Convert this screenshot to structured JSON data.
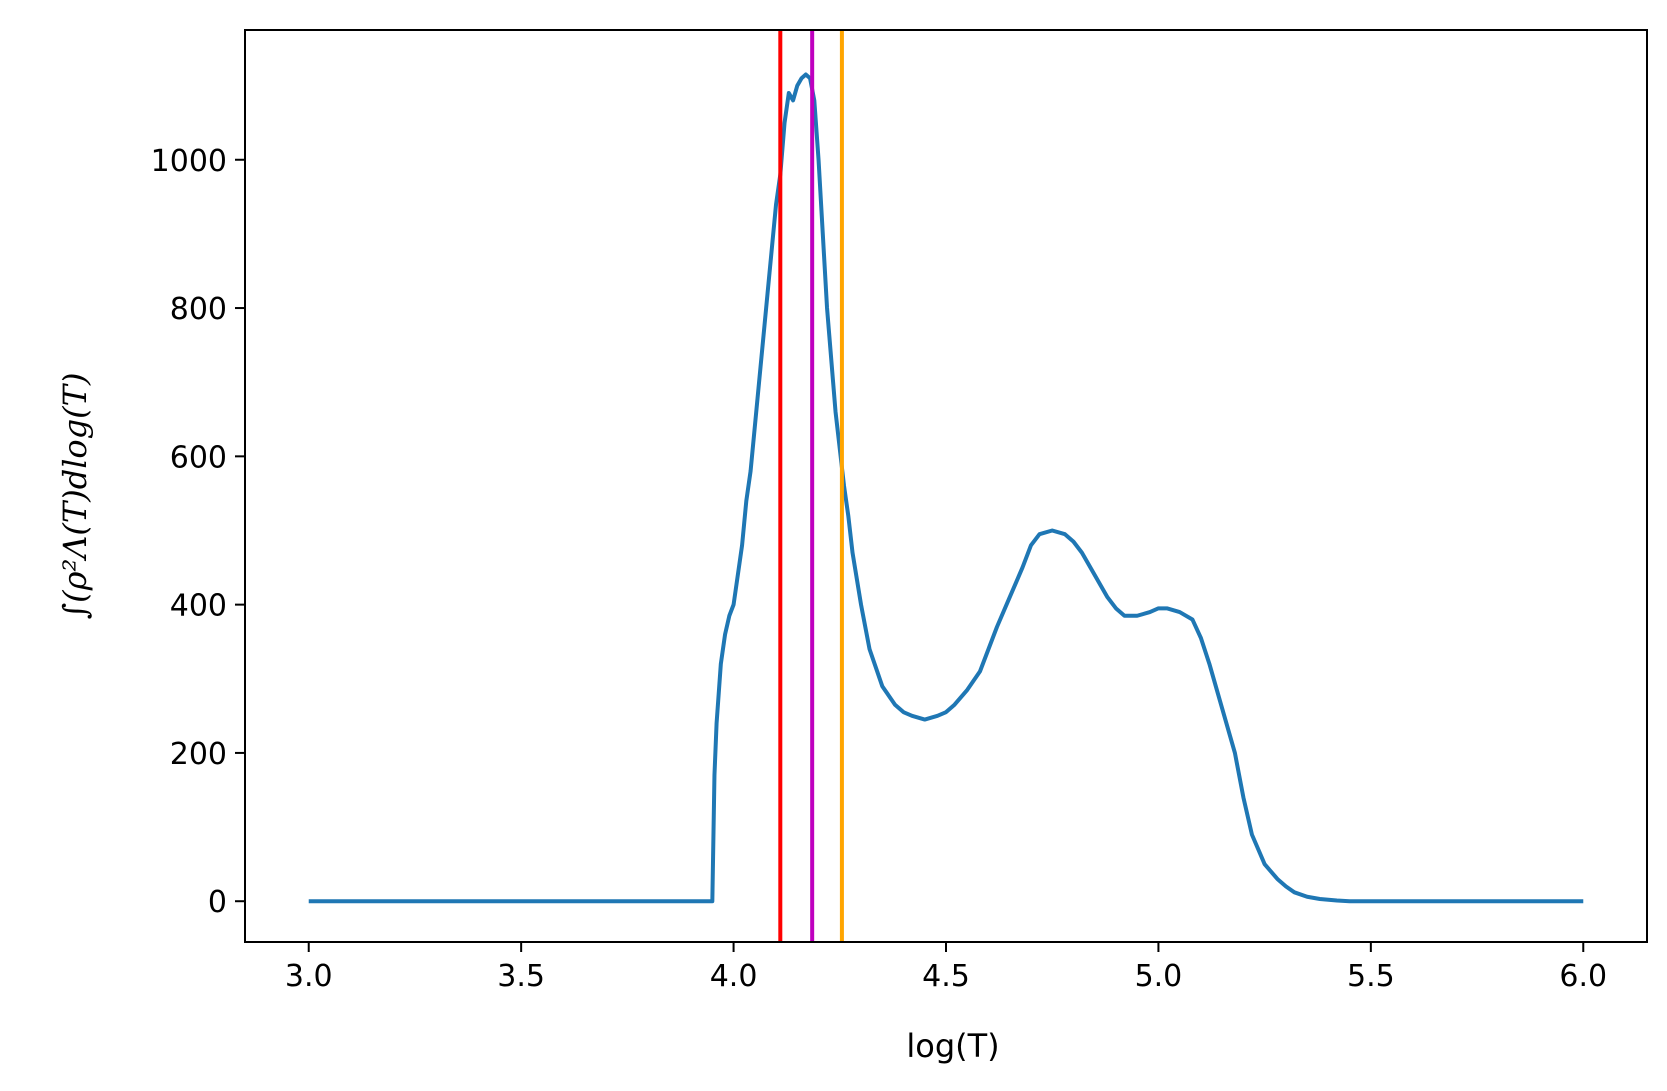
{
  "chart_data": {
    "type": "line",
    "title": "",
    "xlabel": "log(T)",
    "ylabel": "∫(ρ²Λ(T)dlog(T)",
    "xlim": [
      2.85,
      6.15
    ],
    "ylim": [
      -55,
      1175
    ],
    "xticks": [
      "3.0",
      "3.5",
      "4.0",
      "4.5",
      "5.0",
      "5.5",
      "6.0"
    ],
    "yticks": [
      "0",
      "200",
      "400",
      "600",
      "800",
      "1000"
    ],
    "grid": false,
    "legend": "none",
    "series": [
      {
        "color": "#1f77b4",
        "x": [
          3.0,
          3.5,
          3.95,
          3.955,
          3.96,
          3.965,
          3.97,
          3.98,
          3.99,
          4.0,
          4.01,
          4.02,
          4.03,
          4.04,
          4.05,
          4.06,
          4.07,
          4.08,
          4.09,
          4.1,
          4.11,
          4.12,
          4.13,
          4.14,
          4.15,
          4.16,
          4.17,
          4.18,
          4.19,
          4.2,
          4.21,
          4.22,
          4.23,
          4.24,
          4.25,
          4.26,
          4.27,
          4.28,
          4.3,
          4.32,
          4.35,
          4.38,
          4.4,
          4.42,
          4.45,
          4.48,
          4.5,
          4.52,
          4.55,
          4.58,
          4.6,
          4.62,
          4.65,
          4.68,
          4.7,
          4.72,
          4.75,
          4.78,
          4.8,
          4.82,
          4.85,
          4.88,
          4.9,
          4.92,
          4.95,
          4.98,
          5.0,
          5.02,
          5.05,
          5.08,
          5.1,
          5.12,
          5.15,
          5.18,
          5.2,
          5.22,
          5.25,
          5.28,
          5.3,
          5.32,
          5.35,
          5.38,
          5.4,
          5.42,
          5.45,
          5.48,
          5.5,
          5.52,
          5.55,
          5.58,
          5.6,
          5.62,
          5.65,
          5.68,
          5.7,
          5.72,
          5.75,
          5.78,
          5.8,
          5.9,
          6.0
        ],
        "y": [
          0,
          0,
          0,
          170,
          240,
          280,
          320,
          360,
          385,
          400,
          440,
          480,
          540,
          580,
          640,
          700,
          760,
          820,
          880,
          940,
          980,
          1050,
          1090,
          1080,
          1100,
          1110,
          1115,
          1110,
          1080,
          1000,
          900,
          800,
          730,
          660,
          610,
          560,
          520,
          470,
          400,
          340,
          290,
          265,
          255,
          250,
          245,
          250,
          255,
          265,
          285,
          310,
          340,
          370,
          410,
          450,
          480,
          495,
          500,
          495,
          485,
          470,
          440,
          410,
          395,
          385,
          385,
          390,
          395,
          395,
          390,
          380,
          355,
          320,
          260,
          200,
          140,
          90,
          50,
          30,
          20,
          12,
          6,
          3,
          2,
          1,
          0,
          0,
          0,
          0,
          0,
          0,
          0,
          0,
          0,
          0,
          0,
          0,
          0,
          0,
          0,
          0,
          0
        ]
      }
    ],
    "vlines": [
      {
        "x": 4.11,
        "color": "#ff0000"
      },
      {
        "x": 4.185,
        "color": "#bf00bf"
      },
      {
        "x": 4.255,
        "color": "#ffa500"
      }
    ]
  }
}
